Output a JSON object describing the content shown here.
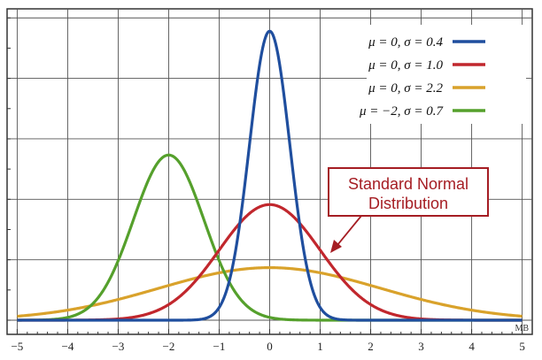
{
  "chart_data": {
    "type": "line",
    "xlim": [
      -5.2,
      5.2
    ],
    "ylim": [
      0,
      1.05
    ],
    "x_ticks": [
      -5,
      -4,
      -3,
      -2,
      -1,
      0,
      1,
      2,
      3,
      4,
      5
    ],
    "x_tick_labels": [
      "−5",
      "−4",
      "−3",
      "−2",
      "−1",
      "0",
      "1",
      "2",
      "3",
      "4",
      "5"
    ],
    "grid": true,
    "legend_position": "top-right",
    "series": [
      {
        "name": "μ = 0,  σ = 0.4",
        "mu": 0,
        "sigma": 0.4,
        "color": "#1f4e9e"
      },
      {
        "name": "μ = 0,  σ = 1.0",
        "mu": 0,
        "sigma": 1.0,
        "color": "#c1272d"
      },
      {
        "name": "μ = 0,  σ = 2.2",
        "mu": 0,
        "sigma": 2.2,
        "color": "#d9a22b"
      },
      {
        "name": "μ = −2,  σ = 0.7",
        "mu": -2,
        "sigma": 0.7,
        "color": "#55a02c"
      }
    ],
    "annotation": {
      "text_line1": "Standard Normal",
      "text_line2": "Distribution",
      "color": "#a51d23"
    },
    "corner_label": "MB"
  }
}
